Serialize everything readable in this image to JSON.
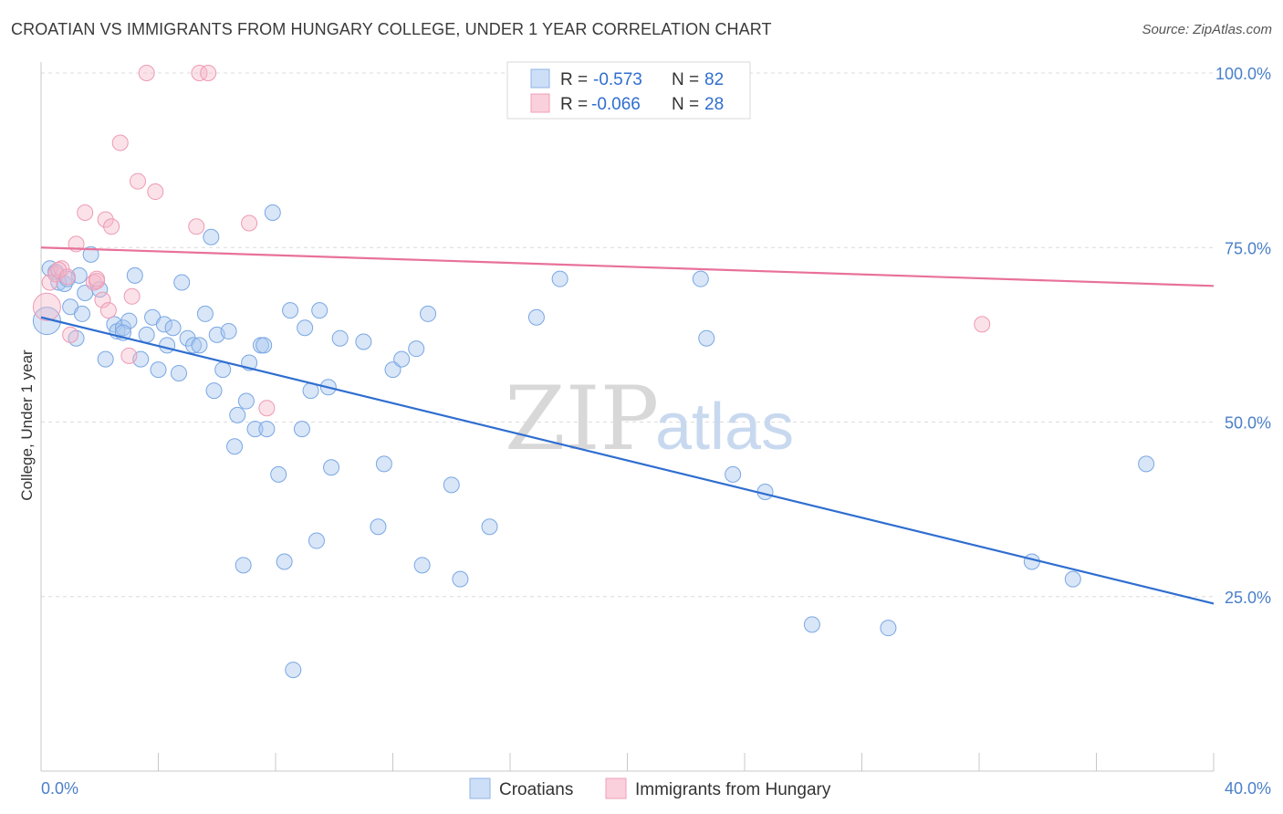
{
  "title": "CROATIAN VS IMMIGRANTS FROM HUNGARY COLLEGE, UNDER 1 YEAR CORRELATION CHART",
  "source": "Source: ZipAtlas.com",
  "watermark": {
    "zip": "ZIP",
    "atlas": "atlas"
  },
  "legend": {
    "r_label": "R =",
    "n_label": "N =",
    "rows": [
      {
        "r": "-0.573",
        "n": "82",
        "color": "#a9c8f0"
      },
      {
        "r": "-0.066",
        "n": "28",
        "color": "#f6b6c8"
      }
    ]
  },
  "bottom_legend": [
    {
      "label": "Croatians",
      "color": "#a9c8f0"
    },
    {
      "label": "Immigrants from Hungary",
      "color": "#f6b6c8"
    }
  ],
  "chart_data": {
    "type": "scatter",
    "title": "CROATIAN VS IMMIGRANTS FROM HUNGARY COLLEGE, UNDER 1 YEAR CORRELATION CHART",
    "xlabel": "",
    "ylabel": "College, Under 1 year",
    "xlim": [
      0,
      40
    ],
    "ylim": [
      0,
      100
    ],
    "x_tick_labels": [
      "0.0%",
      "40.0%"
    ],
    "y_ticks": [
      25,
      50,
      75,
      100
    ],
    "y_tick_labels": [
      "25.0%",
      "50.0%",
      "75.0%",
      "100.0%"
    ],
    "grid": true,
    "legend_position": "top-center",
    "series": [
      {
        "name": "Croatians",
        "color": "#6fa3e8",
        "trend": {
          "x": [
            0,
            40
          ],
          "y": [
            65.0,
            24.0
          ],
          "color": "#2f6ed0"
        },
        "points": [
          [
            0.2,
            64.5
          ],
          [
            0.3,
            72
          ],
          [
            0.5,
            71.5
          ],
          [
            0.6,
            70
          ],
          [
            0.8,
            69.8
          ],
          [
            1.0,
            66.5
          ],
          [
            1.2,
            62
          ],
          [
            1.4,
            65.5
          ],
          [
            1.5,
            68.5
          ],
          [
            1.7,
            74
          ],
          [
            2.0,
            69
          ],
          [
            2.2,
            59
          ],
          [
            2.5,
            64
          ],
          [
            2.6,
            63
          ],
          [
            2.8,
            63.5
          ],
          [
            3.0,
            64.5
          ],
          [
            3.2,
            71
          ],
          [
            3.4,
            59
          ],
          [
            3.6,
            62.5
          ],
          [
            3.8,
            65
          ],
          [
            4.0,
            57.5
          ],
          [
            4.2,
            64
          ],
          [
            4.3,
            61
          ],
          [
            4.5,
            63.5
          ],
          [
            4.7,
            57
          ],
          [
            4.8,
            70
          ],
          [
            5.0,
            62
          ],
          [
            5.2,
            61
          ],
          [
            5.4,
            61
          ],
          [
            5.6,
            65.5
          ],
          [
            5.8,
            76.5
          ],
          [
            5.9,
            54.5
          ],
          [
            6.0,
            62.5
          ],
          [
            6.2,
            57.5
          ],
          [
            6.4,
            63
          ],
          [
            6.6,
            46.5
          ],
          [
            6.7,
            51
          ],
          [
            7.0,
            53
          ],
          [
            7.1,
            58.5
          ],
          [
            7.3,
            49
          ],
          [
            7.5,
            61
          ],
          [
            7.6,
            61
          ],
          [
            7.7,
            49
          ],
          [
            7.9,
            80
          ],
          [
            8.1,
            42.5
          ],
          [
            8.5,
            66
          ],
          [
            8.9,
            49
          ],
          [
            9.0,
            63.5
          ],
          [
            9.2,
            54.5
          ],
          [
            9.4,
            33
          ],
          [
            9.5,
            66
          ],
          [
            9.8,
            55
          ],
          [
            9.9,
            43.5
          ],
          [
            10.2,
            62
          ],
          [
            11.0,
            61.5
          ],
          [
            11.5,
            35
          ],
          [
            11.7,
            44
          ],
          [
            12.0,
            57.5
          ],
          [
            12.3,
            59
          ],
          [
            12.8,
            60.5
          ],
          [
            13.0,
            29.5
          ],
          [
            13.2,
            65.5
          ],
          [
            14.0,
            41
          ],
          [
            14.3,
            27.5
          ],
          [
            15.3,
            35
          ],
          [
            16.9,
            65
          ],
          [
            17.7,
            70.5
          ],
          [
            6.9,
            29.5
          ],
          [
            8.3,
            30
          ],
          [
            8.6,
            14.5
          ],
          [
            22.5,
            70.5
          ],
          [
            22.7,
            62
          ],
          [
            23.6,
            42.5
          ],
          [
            24.7,
            40
          ],
          [
            26.3,
            21
          ],
          [
            28.9,
            20.5
          ],
          [
            33.8,
            30
          ],
          [
            35.2,
            27.5
          ],
          [
            37.7,
            44
          ],
          [
            2.8,
            62.8
          ],
          [
            1.3,
            71
          ],
          [
            0.9,
            70.5
          ]
        ]
      },
      {
        "name": "Immigrants from Hungary",
        "color": "#f48fb1",
        "trend": {
          "x": [
            0,
            40
          ],
          "y": [
            75.0,
            69.5
          ],
          "color": "#e8719b"
        },
        "points": [
          [
            0.2,
            66.5
          ],
          [
            0.3,
            70
          ],
          [
            0.5,
            71.2
          ],
          [
            0.7,
            72
          ],
          [
            1.0,
            62.5
          ],
          [
            1.2,
            75.5
          ],
          [
            1.5,
            80
          ],
          [
            1.8,
            70
          ],
          [
            1.9,
            70.2
          ],
          [
            2.1,
            67.5
          ],
          [
            2.3,
            66
          ],
          [
            2.2,
            79
          ],
          [
            2.4,
            78
          ],
          [
            2.7,
            90
          ],
          [
            3.0,
            59.5
          ],
          [
            3.1,
            68
          ],
          [
            3.3,
            84.5
          ],
          [
            3.6,
            100
          ],
          [
            3.9,
            83
          ],
          [
            5.3,
            78
          ],
          [
            5.4,
            100
          ],
          [
            5.7,
            100
          ],
          [
            7.1,
            78.5
          ],
          [
            7.7,
            52
          ],
          [
            32.1,
            64
          ],
          [
            1.9,
            70.5
          ],
          [
            0.6,
            71.8
          ],
          [
            0.9,
            70.8
          ]
        ]
      }
    ]
  }
}
